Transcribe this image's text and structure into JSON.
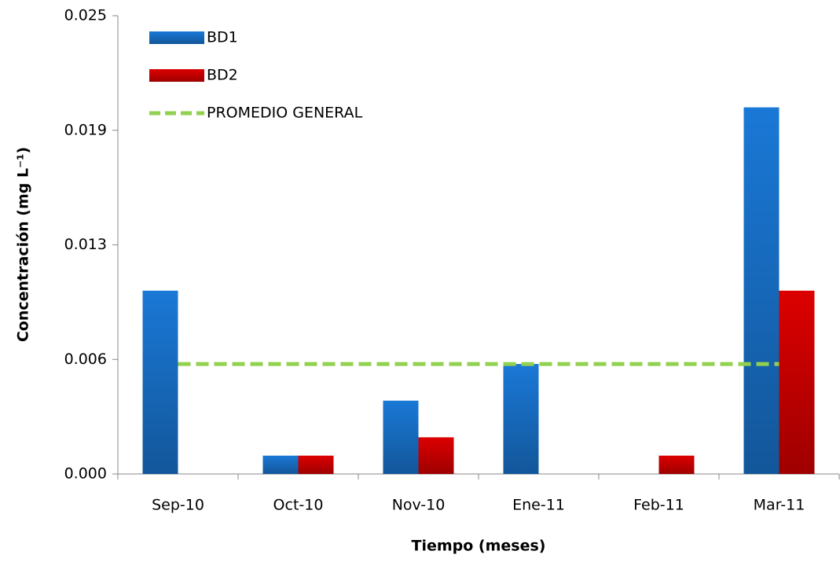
{
  "chart_data": {
    "type": "bar",
    "x_label": "Tiempo (meses)",
    "y_label": "Concentración (mg L⁻¹)",
    "categories": [
      "Sep-10",
      "Oct-10",
      "Nov-10",
      "Ene-11",
      "Feb-11",
      "Mar-11"
    ],
    "series": [
      {
        "name": "BD1",
        "color": "#1a78d6",
        "values": [
          0.01,
          0.001,
          0.004,
          0.006,
          0,
          0.02
        ]
      },
      {
        "name": "BD2",
        "color": "#dc0000",
        "values": [
          0,
          0.001,
          0.002,
          0,
          0.001,
          0.01
        ]
      },
      {
        "name": "PROMEDIO GENERAL",
        "type": "line",
        "dashed": true,
        "color": "#92d050",
        "values": [
          0.006,
          0.006,
          0.006,
          0.006,
          0.006,
          0.006
        ]
      }
    ],
    "ylim": [
      0,
      0.025
    ],
    "yticks": [
      {
        "value": 0,
        "label": "0.000"
      },
      {
        "value": 0.00625,
        "label": "0.006"
      },
      {
        "value": 0.0125,
        "label": "0.013"
      },
      {
        "value": 0.01875,
        "label": "0.019"
      },
      0.025
    ],
    "legend": "top-left"
  }
}
